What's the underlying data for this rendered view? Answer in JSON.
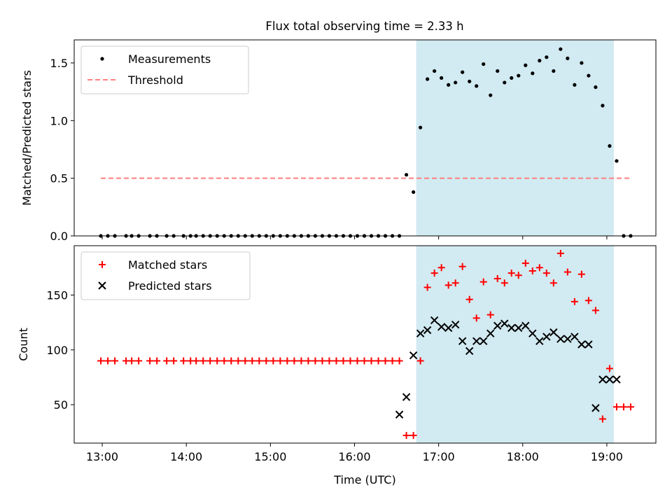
{
  "figure": {
    "title": "Flux total observing time = 2.33 h"
  },
  "chart_data": [
    {
      "type": "scatter",
      "panel": "top",
      "ylabel": "Matched/Predicted stars",
      "xlabel": "",
      "xlim": [
        "12:40",
        "19:35"
      ],
      "ylim": [
        0,
        1.7
      ],
      "yticks": [
        0.0,
        0.5,
        1.0,
        1.5
      ],
      "ytick_labels": [
        "0.0",
        "0.5",
        "1.0",
        "1.5"
      ],
      "xticks": [
        "13:00",
        "14:00",
        "15:00",
        "16:00",
        "17:00",
        "18:00",
        "19:00"
      ],
      "shaded_region": {
        "x": [
          "16:44",
          "19:05"
        ],
        "color": "#add8e6"
      },
      "legend": {
        "position": "top-left",
        "entries": [
          "Measurements",
          "Threshold"
        ]
      },
      "series": [
        {
          "name": "Measurements",
          "marker": "dot",
          "color": "#000000",
          "x": [
            "12:59",
            "13:04",
            "13:09",
            "13:17",
            "13:21",
            "13:26",
            "13:34",
            "13:39",
            "13:46",
            "13:51",
            "13:58",
            "14:03",
            "14:07",
            "14:12",
            "14:17",
            "14:22",
            "14:27",
            "14:32",
            "14:37",
            "14:42",
            "14:47",
            "14:52",
            "14:57",
            "15:02",
            "15:07",
            "15:12",
            "15:17",
            "15:22",
            "15:27",
            "15:32",
            "15:37",
            "15:42",
            "15:47",
            "15:52",
            "15:57",
            "16:02",
            "16:07",
            "16:12",
            "16:17",
            "16:22",
            "16:27",
            "16:32",
            "16:37",
            "16:42",
            "16:47",
            "16:52",
            "16:57",
            "17:02",
            "17:07",
            "17:12",
            "17:17",
            "17:22",
            "17:27",
            "17:32",
            "17:37",
            "17:42",
            "17:47",
            "17:52",
            "17:57",
            "18:02",
            "18:07",
            "18:12",
            "18:17",
            "18:22",
            "18:27",
            "18:32",
            "18:37",
            "18:42",
            "18:47",
            "18:52",
            "18:57",
            "19:02",
            "19:07",
            "19:12",
            "19:17"
          ],
          "y": [
            0,
            0,
            0,
            0,
            0,
            0,
            0,
            0,
            0,
            0,
            0,
            0,
            0,
            0,
            0,
            0,
            0,
            0,
            0,
            0,
            0,
            0,
            0,
            0,
            0,
            0,
            0,
            0,
            0,
            0,
            0,
            0,
            0,
            0,
            0,
            0,
            0,
            0,
            0,
            0,
            0,
            0,
            0.53,
            0.38,
            0.94,
            1.36,
            1.43,
            1.37,
            1.31,
            1.33,
            1.42,
            1.34,
            1.3,
            1.49,
            1.22,
            1.43,
            1.33,
            1.37,
            1.39,
            1.48,
            1.41,
            1.52,
            1.55,
            1.43,
            1.62,
            1.54,
            1.31,
            1.5,
            1.39,
            1.29,
            1.13,
            0.78,
            0.65,
            0,
            0
          ]
        },
        {
          "name": "Threshold",
          "marker": "dashed-line",
          "color": "#ff7f7f",
          "x": [
            "12:59",
            "19:17"
          ],
          "y": [
            0.5,
            0.5
          ]
        }
      ]
    },
    {
      "type": "scatter",
      "panel": "bottom",
      "ylabel": "Count",
      "xlabel": "Time (UTC)",
      "xlim": [
        "12:40",
        "19:35"
      ],
      "ylim": [
        15,
        195
      ],
      "yticks": [
        50,
        100,
        150
      ],
      "ytick_labels": [
        "50",
        "100",
        "150"
      ],
      "xticks": [
        "13:00",
        "14:00",
        "15:00",
        "16:00",
        "17:00",
        "18:00",
        "19:00"
      ],
      "xtick_labels": [
        "13:00",
        "14:00",
        "15:00",
        "16:00",
        "17:00",
        "18:00",
        "19:00"
      ],
      "shaded_region": {
        "x": [
          "16:44",
          "19:05"
        ],
        "color": "#add8e6"
      },
      "legend": {
        "position": "top-left",
        "entries": [
          "Matched stars",
          "Predicted stars"
        ]
      },
      "series": [
        {
          "name": "Matched stars",
          "marker": "plus",
          "color": "#ff0000",
          "x": [
            "12:59",
            "13:04",
            "13:09",
            "13:17",
            "13:21",
            "13:26",
            "13:34",
            "13:39",
            "13:46",
            "13:51",
            "13:58",
            "14:03",
            "14:07",
            "14:12",
            "14:17",
            "14:22",
            "14:27",
            "14:32",
            "14:37",
            "14:42",
            "14:47",
            "14:52",
            "14:57",
            "15:02",
            "15:07",
            "15:12",
            "15:17",
            "15:22",
            "15:27",
            "15:32",
            "15:37",
            "15:42",
            "15:47",
            "15:52",
            "15:57",
            "16:02",
            "16:07",
            "16:12",
            "16:17",
            "16:22",
            "16:27",
            "16:32",
            "16:37",
            "16:42",
            "16:47",
            "16:52",
            "16:57",
            "17:02",
            "17:07",
            "17:12",
            "17:17",
            "17:22",
            "17:27",
            "17:32",
            "17:37",
            "17:42",
            "17:47",
            "17:52",
            "17:57",
            "18:02",
            "18:07",
            "18:12",
            "18:17",
            "18:22",
            "18:27",
            "18:32",
            "18:37",
            "18:42",
            "18:47",
            "18:52",
            "18:57",
            "19:02",
            "19:07",
            "19:12",
            "19:17"
          ],
          "y": [
            90,
            90,
            90,
            90,
            90,
            90,
            90,
            90,
            90,
            90,
            90,
            90,
            90,
            90,
            90,
            90,
            90,
            90,
            90,
            90,
            90,
            90,
            90,
            90,
            90,
            90,
            90,
            90,
            90,
            90,
            90,
            90,
            90,
            90,
            90,
            90,
            90,
            90,
            90,
            90,
            90,
            90,
            22,
            22,
            90,
            157,
            170,
            175,
            159,
            161,
            176,
            146,
            129,
            162,
            132,
            165,
            161,
            170,
            168,
            179,
            172,
            175,
            170,
            161,
            188,
            171,
            144,
            169,
            145,
            136,
            37,
            83,
            48,
            48,
            48
          ]
        },
        {
          "name": "Predicted stars",
          "marker": "x",
          "color": "#000000",
          "x": [
            "16:32",
            "16:37",
            "16:42",
            "16:47",
            "16:52",
            "16:57",
            "17:02",
            "17:07",
            "17:12",
            "17:17",
            "17:22",
            "17:27",
            "17:32",
            "17:37",
            "17:42",
            "17:47",
            "17:52",
            "17:57",
            "18:02",
            "18:07",
            "18:12",
            "18:17",
            "18:22",
            "18:27",
            "18:32",
            "18:37",
            "18:42",
            "18:47",
            "18:52",
            "18:57",
            "19:02",
            "19:07"
          ],
          "y": [
            41,
            57,
            95,
            115,
            118,
            127,
            121,
            120,
            123,
            108,
            99,
            108,
            108,
            115,
            122,
            124,
            120,
            120,
            122,
            115,
            108,
            112,
            116,
            110,
            110,
            112,
            105,
            105,
            47,
            73,
            73,
            73
          ]
        }
      ]
    }
  ]
}
